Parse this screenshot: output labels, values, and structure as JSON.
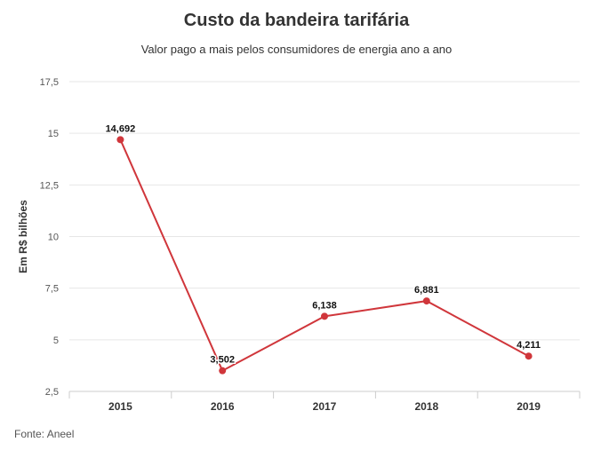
{
  "chart_data": {
    "type": "line",
    "title": "Custo da bandeira tarifária",
    "subtitle": "Valor pago a mais pelos consumidores de energia ano a ano",
    "ylabel": "Em R$ bilhões",
    "xlabel": "",
    "categories": [
      "2015",
      "2016",
      "2017",
      "2018",
      "2019"
    ],
    "series": [
      {
        "values": [
          14.692,
          3.502,
          6.138,
          6.881,
          4.211
        ],
        "labels": [
          "14,692",
          "3,502",
          "6,138",
          "6,881",
          "4,211"
        ]
      }
    ],
    "ylim": [
      2.5,
      17.5
    ],
    "yticks": [
      2.5,
      5,
      7.5,
      10,
      12.5,
      15,
      17.5
    ],
    "ytick_labels": [
      "2,5",
      "5",
      "7,5",
      "10",
      "12,5",
      "15",
      "17,5"
    ],
    "grid": true,
    "legend": "none",
    "line_color": "#d0363b",
    "grid_color": "#e6e6e6"
  },
  "source": "Fonte: Aneel"
}
